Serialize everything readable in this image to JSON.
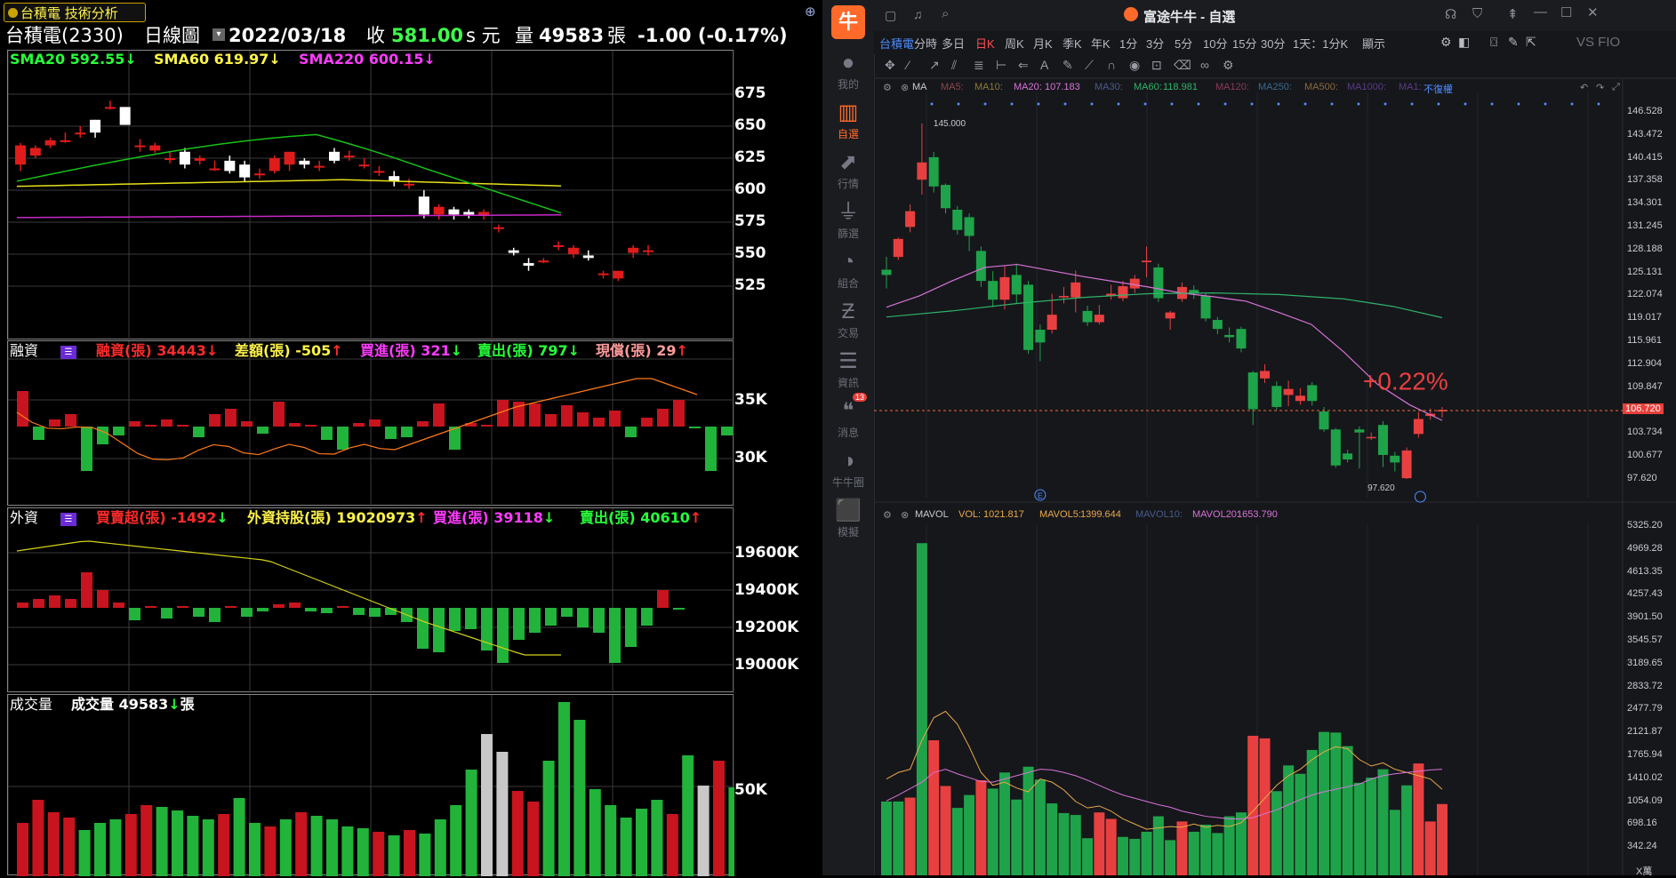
{
  "left": {
    "tab_title": "台積電 技術分析",
    "stock_name": "台積電(2330)",
    "period": "日線圖",
    "date": "2022/03/18",
    "close_label": "收",
    "close_value": "581.00",
    "close_unit": "s 元",
    "volume_label": "量",
    "volume_value": "49583",
    "volume_unit": "張",
    "change": "-1.00 (-0.17%)",
    "price_panel": {
      "sma20": "SMA20 592.55",
      "sma60": "SMA60 619.97",
      "sma220": "SMA220 600.15",
      "y_ticks": [
        "675",
        "650",
        "625",
        "600",
        "575",
        "550",
        "525"
      ]
    },
    "margin_panel": {
      "title": "融資",
      "items": [
        "融資(張) 34443",
        "差額(張) -505",
        "買進(張) 321",
        "賣出(張) 797",
        "現償(張) 29"
      ],
      "y_ticks": [
        "35K",
        "30K"
      ]
    },
    "foreign_panel": {
      "title": "外資",
      "items": [
        "買賣超(張) -1492",
        "外資持股(張) 19020973",
        "買進(張) 39118",
        "賣出(張) 40610"
      ],
      "y_ticks": [
        "19600K",
        "19400K",
        "19200K",
        "19000K"
      ]
    },
    "volume_panel": {
      "title": "成交量",
      "item": "成交量 49583",
      "unit": "張",
      "y_ticks": [
        "50K"
      ]
    }
  },
  "right": {
    "app_title": "富途牛牛 - 自選",
    "sidebar": [
      {
        "label": "我的",
        "icon": "user-icon"
      },
      {
        "label": "自選",
        "icon": "watchlist-icon"
      },
      {
        "label": "行情",
        "icon": "market-icon"
      },
      {
        "label": "篩選",
        "icon": "filter-icon"
      },
      {
        "label": "組合",
        "icon": "portfolio-icon"
      },
      {
        "label": "交易",
        "icon": "trade-icon"
      },
      {
        "label": "資訊",
        "icon": "news-icon"
      },
      {
        "label": "消息",
        "icon": "message-icon",
        "badge": "13"
      },
      {
        "label": "牛牛圈",
        "icon": "community-icon"
      },
      {
        "label": "模擬",
        "icon": "simulate-icon"
      }
    ],
    "timeframes": [
      "台積電",
      "分時",
      "多日",
      "日K",
      "周K",
      "月K",
      "季K",
      "年K",
      "1分",
      "3分",
      "5分",
      "10分",
      "15分",
      "30分",
      "1天：1分K",
      "顯示",
      "VS FIO"
    ],
    "ma_legend": {
      "ma": "MA",
      "ma5": "MA5:",
      "ma10": "MA10:",
      "ma20": "MA20:",
      "ma20_value": "107.183",
      "ma30": "MA30:",
      "ma60": "MA60:",
      "ma60_value": "118.981",
      "ma120": "MA120:",
      "ma250": "MA250:",
      "ma500": "MA500:",
      "ma1000": "MA1000:",
      "ma1": "MA1:",
      "no_adjust": "不復權"
    },
    "price_axis": [
      "146.528",
      "143.472",
      "140.415",
      "137.358",
      "134.301",
      "131.245",
      "128.188",
      "125.131",
      "122.074",
      "119.017",
      "115.961",
      "112.904",
      "109.847",
      "106.720",
      "103.734",
      "100.677",
      "97.620"
    ],
    "current_price": "106.720",
    "high_label": "145.000",
    "low_label": "97.620",
    "change_pct": "+0.22%",
    "vol_legend": {
      "name": "MAVOL",
      "vol": "VOL:",
      "vol_value": "1021.817",
      "mavol5": "MAVOL5:",
      "mavol5_value": "1399.644",
      "mavol10": "MAVOL10:",
      "mavol20": "MAVOL20:",
      "mavol20_value": "1653.790"
    },
    "vol_axis": [
      "5325.20",
      "4969.28",
      "4613.35",
      "4257.43",
      "3901.50",
      "3545.57",
      "3189.65",
      "2833.72",
      "2477.79",
      "2121.87",
      "1765.94",
      "1410.02",
      "1054.09",
      "698.16",
      "342.24"
    ],
    "vol_axis_unit": "X萬",
    "colors": {
      "up": "#e84040",
      "down": "#1fa34a",
      "ma20": "#d873d8",
      "ma60": "#2fb36a",
      "accent": "#ff6a2a"
    }
  }
}
